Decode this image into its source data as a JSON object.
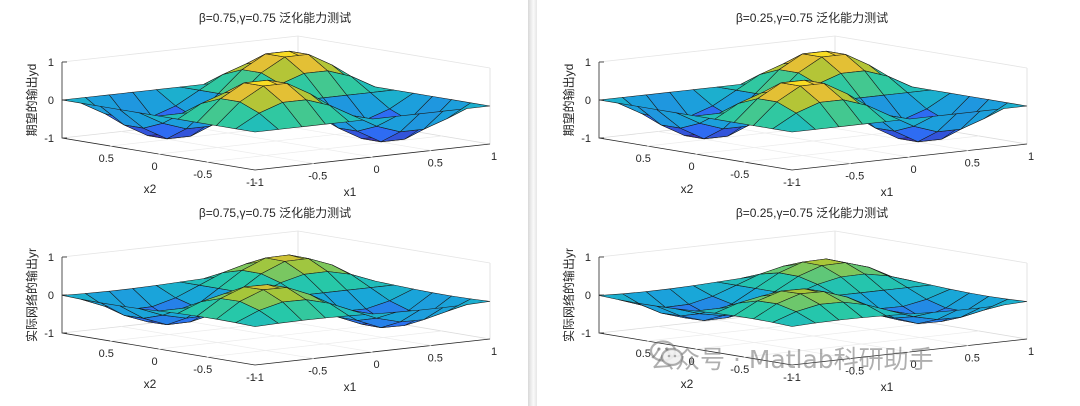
{
  "watermark": {
    "text": "公众号 · Matlab科研助手",
    "icon": "wechat-icon"
  },
  "panels_meta": {
    "colors": {
      "low": "#3d26a8",
      "mid": "#1fa3c5",
      "high": "#f9e43a",
      "edge": "#1a1a1a",
      "axis": "#262626"
    }
  },
  "chart_data": [
    {
      "id": "tl",
      "type": "surface",
      "title": "β=0.75,γ=0.75 泛化能力测试",
      "xlabel": "x1",
      "ylabel": "x2",
      "zlabel": "期望的输出yd",
      "xlim": [
        -1,
        1
      ],
      "ylim": [
        -1,
        1
      ],
      "zlim": [
        -1,
        1
      ],
      "x_ticks": [
        "-1",
        "-0.5",
        "0",
        "0.5",
        "1"
      ],
      "y_ticks": [
        "0.5",
        "0",
        "-0.5",
        "-1"
      ],
      "z_ticks": [
        "1",
        "0",
        "-1"
      ],
      "grid_n": 11,
      "function": "z = sin(pi*x1)*sin(pi*x2)",
      "scale": 1.0,
      "smooth": 0.0
    },
    {
      "id": "bl",
      "type": "surface",
      "title": "β=0.75,γ=0.75 泛化能力测试",
      "xlabel": "x1",
      "ylabel": "x2",
      "zlabel": "实际网络的输出yr",
      "xlim": [
        -1,
        1
      ],
      "ylim": [
        -1,
        1
      ],
      "zlim": [
        -1,
        1
      ],
      "x_ticks": [
        "-1",
        "-0.5",
        "0",
        "0.5",
        "1"
      ],
      "y_ticks": [
        "0.5",
        "0",
        "-0.5",
        "-1"
      ],
      "z_ticks": [
        "1",
        "0",
        "-1"
      ],
      "grid_n": 11,
      "function": "network approximation of sin(pi*x1)*sin(pi*x2)",
      "scale": 0.82,
      "smooth": 0.25
    },
    {
      "id": "tr",
      "type": "surface",
      "title": "β=0.25,γ=0.75 泛化能力测试",
      "xlabel": "x1",
      "ylabel": "x2",
      "zlabel": "期望的输出yd",
      "xlim": [
        -1,
        1
      ],
      "ylim": [
        -1,
        1
      ],
      "zlim": [
        -1,
        1
      ],
      "x_ticks": [
        "-1",
        "-0.5",
        "0",
        "0.5",
        "1"
      ],
      "y_ticks": [
        "0.5",
        "0",
        "-0.5",
        "-1"
      ],
      "z_ticks": [
        "1",
        "0",
        "-1"
      ],
      "grid_n": 11,
      "function": "z = sin(pi*x1)*sin(pi*x2)",
      "scale": 1.0,
      "smooth": 0.0
    },
    {
      "id": "br",
      "type": "surface",
      "title": "β=0.25,γ=0.75 泛化能力测试",
      "xlabel": "x1",
      "ylabel": "x2",
      "zlabel": "实际网络的输出yr",
      "xlim": [
        -1,
        1
      ],
      "ylim": [
        -1,
        1
      ],
      "zlim": [
        -1,
        1
      ],
      "x_ticks": [
        "-1",
        "-0.5",
        "0",
        "0.5",
        "1"
      ],
      "y_ticks": [
        "0.5",
        "0",
        "-0.5",
        "-1"
      ],
      "z_ticks": [
        "1",
        "0",
        "-1"
      ],
      "grid_n": 11,
      "function": "network approximation of sin(pi*x1)*sin(pi*x2)",
      "scale": 0.72,
      "smooth": 0.35
    }
  ]
}
